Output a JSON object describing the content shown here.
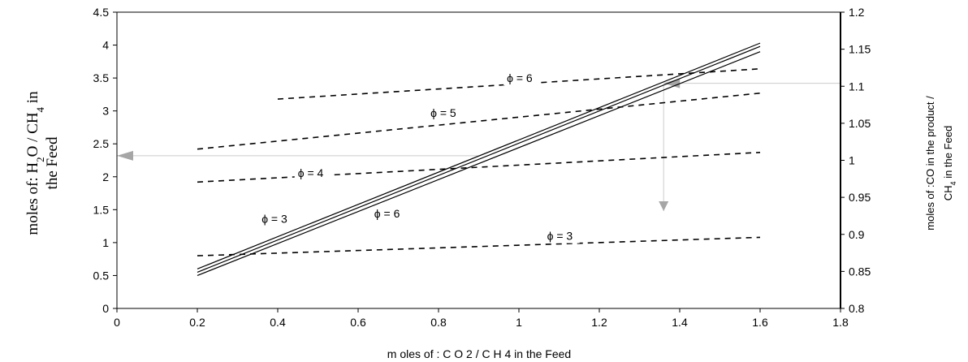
{
  "chart_data": {
    "type": "line",
    "xlabel": "m oles of : C O 2 / C H 4 in the Feed",
    "ylabel_left": {
      "line1_pre": "moles of: H",
      "line1_sub1": "2",
      "line1_mid": "O / CH",
      "line1_sub2": "4",
      "line1_post": " in",
      "line2": "the Feed"
    },
    "ylabel_right": {
      "line1": "moles of :CO in the product /",
      "line2_pre": "CH",
      "line2_sub": "4",
      "line2_post": " in the Feed"
    },
    "xlim": [
      0,
      1.8
    ],
    "ylim_left": [
      0,
      4.5
    ],
    "ylim_right": [
      0.8,
      1.2
    ],
    "x_ticks": [
      "0",
      "0.2",
      "0.4",
      "0.6",
      "0.8",
      "1",
      "1.2",
      "1.4",
      "1.6",
      "1.8"
    ],
    "y_left_ticks": [
      "0",
      "0.5",
      "1",
      "1.5",
      "2",
      "2.5",
      "3",
      "3.5",
      "4",
      "4.5"
    ],
    "y_right_ticks": [
      "0.8",
      "0.85",
      "0.9",
      "0.95",
      "1",
      "1.05",
      "1.1",
      "1.15",
      "1.2"
    ],
    "grid": false,
    "solid_series": [
      {
        "axis": "left",
        "x": [
          0.2,
          1.6
        ],
        "y": [
          0.6,
          4.03
        ]
      },
      {
        "axis": "left",
        "x": [
          0.2,
          1.6
        ],
        "y": [
          0.55,
          3.98
        ]
      },
      {
        "axis": "left",
        "x": [
          0.2,
          1.6
        ],
        "y": [
          0.5,
          3.9
        ]
      }
    ],
    "dashed_series": [
      {
        "axis": "left",
        "x": [
          0.2,
          1.6
        ],
        "y": [
          0.8,
          1.08
        ]
      },
      {
        "axis": "left",
        "x": [
          0.2,
          1.6
        ],
        "y": [
          1.92,
          2.37
        ]
      },
      {
        "axis": "left",
        "x": [
          0.2,
          1.6
        ],
        "y": [
          2.42,
          3.27
        ]
      },
      {
        "axis": "left",
        "x": [
          0.4,
          1.6
        ],
        "y": [
          3.18,
          3.64
        ]
      }
    ],
    "annotations": [
      {
        "text": "ϕ = 6",
        "x": 0.97,
        "y": 3.44
      },
      {
        "text": "ϕ = 5",
        "x": 0.78,
        "y": 2.91
      },
      {
        "text": "ϕ = 4",
        "x": 0.45,
        "y": 2.0
      },
      {
        "text": "ϕ = 3",
        "x": 0.36,
        "y": 1.3
      },
      {
        "text": "ϕ = 6",
        "x": 0.64,
        "y": 1.38
      },
      {
        "text": "ϕ = 3",
        "x": 1.07,
        "y": 1.04
      }
    ],
    "guides": [
      {
        "from": [
          1.36,
          3.41
        ],
        "to": [
          1.36,
          1.48
        ],
        "arrow": "down"
      },
      {
        "from": [
          1.8,
          3.42
        ],
        "to": [
          1.36,
          3.42
        ],
        "arrow": "left"
      },
      {
        "from": [
          0.9,
          2.32
        ],
        "to": [
          0,
          2.32
        ],
        "arrow": "left"
      }
    ]
  }
}
